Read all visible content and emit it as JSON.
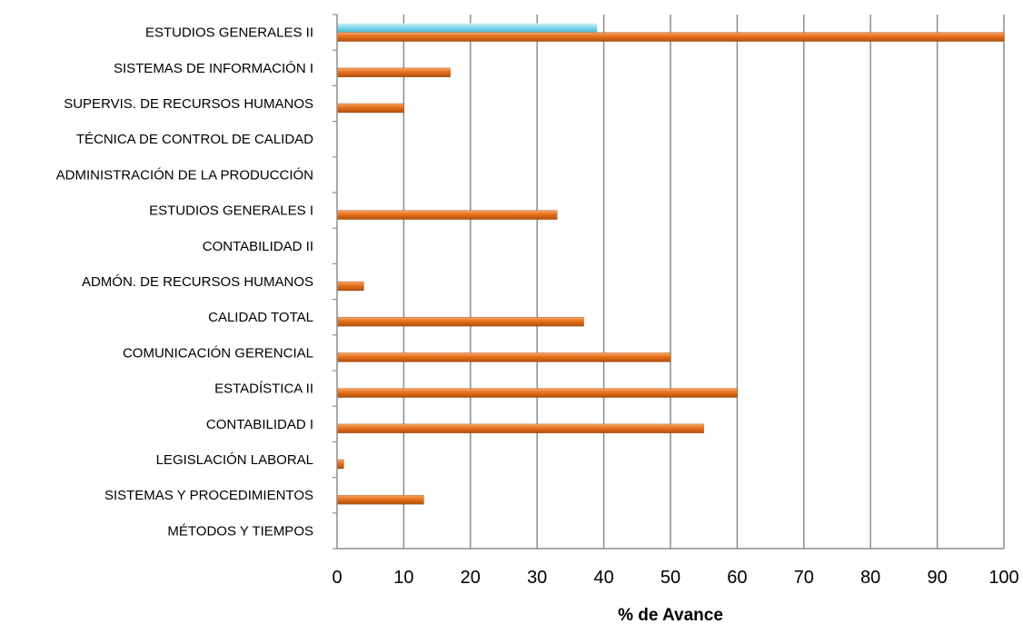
{
  "chart_data": {
    "type": "bar",
    "orientation": "horizontal",
    "title": "",
    "xlabel": "% de Avance",
    "ylabel": "",
    "xlim": [
      0,
      100
    ],
    "xticks": [
      "0",
      "10",
      "20",
      "30",
      "40",
      "50",
      "60",
      "70",
      "80",
      "90",
      "100"
    ],
    "grid": "vertical",
    "categories": [
      "ESTUDIOS GENERALES II",
      "SISTEMAS DE INFORMACIÓN I",
      "SUPERVIS. DE  RECURSOS HUMANOS",
      "TÉCNICA DE CONTROL DE CALIDAD",
      "ADMINISTRACIÓN DE LA PRODUCCIÓN",
      "ESTUDIOS GENERALES I",
      "CONTABILIDAD II",
      "ADMÓN. DE RECURSOS HUMANOS",
      "CALIDAD TOTAL",
      "COMUNICACIÓN GERENCIAL",
      "ESTADÍSTICA II",
      "CONTABILIDAD I",
      "LEGISLACIÓN LABORAL",
      "SISTEMAS Y PROCEDIMIENTOS",
      "MÉTODOS Y TIEMPOS"
    ],
    "series": [
      {
        "color": "#6fd0e6",
        "values": [
          39,
          0,
          0,
          0,
          0,
          0,
          0,
          0,
          0,
          0,
          0,
          0,
          0,
          0,
          0
        ]
      },
      {
        "color": "#e8701a",
        "values": [
          100,
          17,
          10,
          0,
          0,
          33,
          0,
          4,
          37,
          50,
          60,
          55,
          1,
          13,
          0
        ]
      }
    ]
  }
}
